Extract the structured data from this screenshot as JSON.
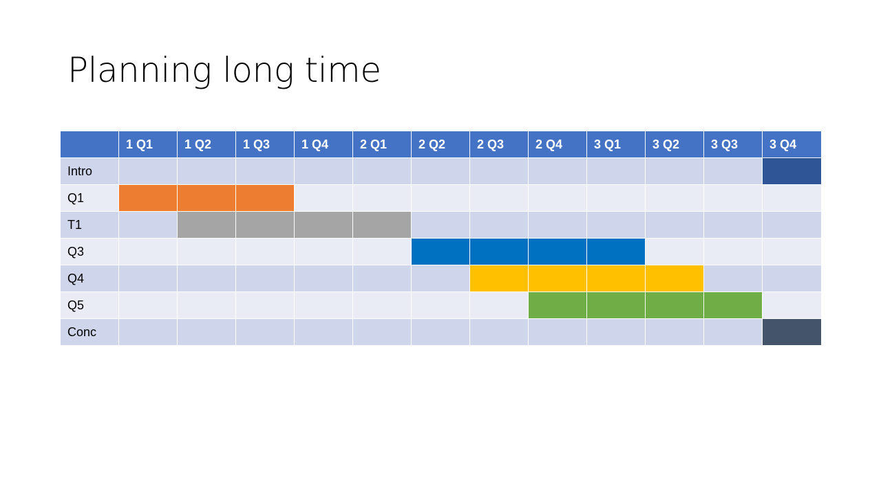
{
  "slide": {
    "title": "Planning long time"
  },
  "table": {
    "corner_label": "",
    "quarters": [
      "1 Q1",
      "1 Q2",
      "1 Q3",
      "1 Q4",
      "2 Q1",
      "2 Q2",
      "2 Q3",
      "2 Q4",
      "3 Q1",
      "3 Q2",
      "3 Q3",
      "3 Q4"
    ],
    "rows": [
      {
        "label": "Intro",
        "start": 11,
        "end": 11,
        "color": "#2f5597"
      },
      {
        "label": "Q1",
        "start": 0,
        "end": 2,
        "color": "#ed7d31"
      },
      {
        "label": "T1",
        "start": 1,
        "end": 4,
        "color": "#a5a5a5"
      },
      {
        "label": "Q3",
        "start": 5,
        "end": 8,
        "color": "#0070c0"
      },
      {
        "label": "Q4",
        "start": 6,
        "end": 9,
        "color": "#ffc000"
      },
      {
        "label": "Q5",
        "start": 7,
        "end": 10,
        "color": "#70ad47"
      },
      {
        "label": "Conc",
        "start": 11,
        "end": 11,
        "color": "#44546a"
      }
    ],
    "colors": {
      "header": "#4472c4",
      "band_dark": "#cfd5ea",
      "band_light": "#e9ebf5"
    }
  }
}
